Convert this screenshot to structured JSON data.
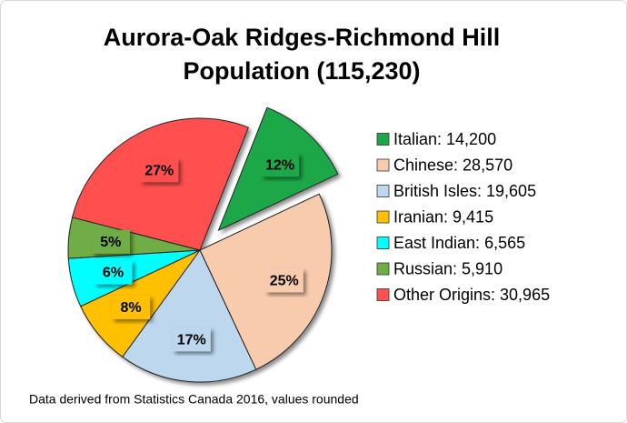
{
  "chart_data": {
    "type": "pie",
    "title": [
      "Aurora-Oak Ridges-Richmond Hill",
      "Population (115,230)"
    ],
    "categories": [
      "Italian: 14,200",
      "Chinese: 28,570",
      "British Isles: 19,605",
      "Iranian: 9,415",
      "East Indian: 6,565",
      "Russian: 5,910",
      "Other Origins: 30,965"
    ],
    "values": [
      12,
      25,
      17,
      8,
      6,
      5,
      27
    ],
    "value_labels": [
      "12%",
      "25%",
      "17%",
      "8%",
      "6%",
      "5%",
      "27%"
    ],
    "colors": [
      "#1aa84a",
      "#f8cbad",
      "#bdd7ee",
      "#ffc000",
      "#00ffff",
      "#70ad47",
      "#ff5050"
    ],
    "exploded": [
      0
    ],
    "legend": "right",
    "note": "Data derived from Statistics Canada 2016, values rounded"
  }
}
